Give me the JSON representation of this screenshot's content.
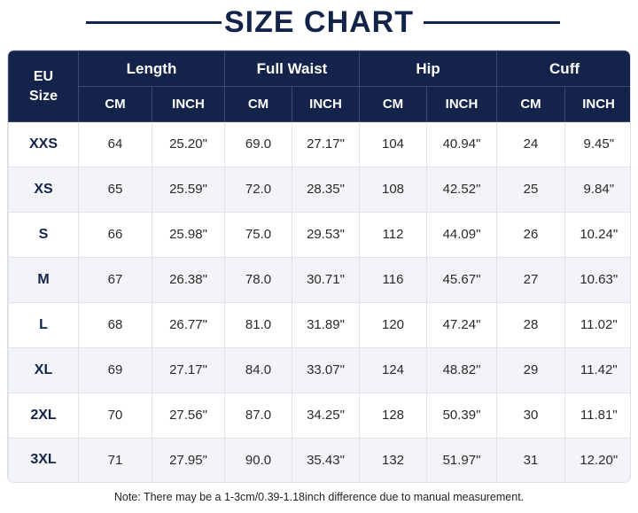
{
  "title": "SIZE CHART",
  "table": {
    "size_header": [
      "EU",
      "Size"
    ],
    "groups": [
      {
        "name": "Length",
        "units": [
          "CM",
          "INCH"
        ]
      },
      {
        "name": "Full Waist",
        "units": [
          "CM",
          "INCH"
        ]
      },
      {
        "name": "Hip",
        "units": [
          "CM",
          "INCH"
        ]
      },
      {
        "name": "Cuff",
        "units": [
          "CM",
          "INCH"
        ]
      }
    ],
    "rows": [
      [
        "XXS",
        "64",
        "25.20\"",
        "69.0",
        "27.17\"",
        "104",
        "40.94\"",
        "24",
        "9.45\""
      ],
      [
        "XS",
        "65",
        "25.59\"",
        "72.0",
        "28.35\"",
        "108",
        "42.52\"",
        "25",
        "9.84\""
      ],
      [
        "S",
        "66",
        "25.98\"",
        "75.0",
        "29.53\"",
        "112",
        "44.09\"",
        "26",
        "10.24\""
      ],
      [
        "M",
        "67",
        "26.38\"",
        "78.0",
        "30.71\"",
        "116",
        "45.67\"",
        "27",
        "10.63\""
      ],
      [
        "L",
        "68",
        "26.77\"",
        "81.0",
        "31.89\"",
        "120",
        "47.24\"",
        "28",
        "11.02\""
      ],
      [
        "XL",
        "69",
        "27.17\"",
        "84.0",
        "33.07\"",
        "124",
        "48.82\"",
        "29",
        "11.42\""
      ],
      [
        "2XL",
        "70",
        "27.56\"",
        "87.0",
        "34.25\"",
        "128",
        "50.39\"",
        "30",
        "11.81\""
      ],
      [
        "3XL",
        "71",
        "27.95\"",
        "90.0",
        "35.43\"",
        "132",
        "51.97\"",
        "31",
        "12.20\""
      ]
    ]
  },
  "note": "Note: There may be a 1-3cm/0.39-1.18inch difference due to manual measurement."
}
